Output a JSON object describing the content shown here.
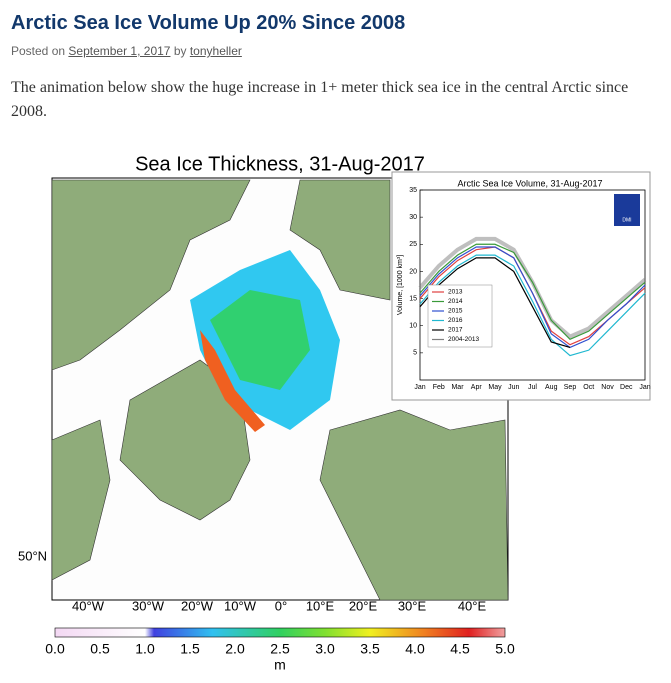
{
  "header": {
    "title": "Arctic Sea Ice Volume Up 20% Since 2008",
    "posted": "Posted on",
    "date": "September 1, 2017",
    "by": "by",
    "author": "tonyheller"
  },
  "body": {
    "paragraph": "The animation below show the huge increase in 1+ meter thick sea ice in the central Arctic since 2008."
  },
  "figure": {
    "title": "Sea Ice Thickness, 31-Aug-2017",
    "lon_labels": [
      "40°W",
      "30°W",
      "20°W",
      "10°W",
      "0°",
      "10°E",
      "20°E",
      "30°E",
      "40°E"
    ],
    "lat_label": "50°N",
    "colorbar": {
      "ticks": [
        "0.0",
        "0.5",
        "1.0",
        "1.5",
        "2.0",
        "2.5",
        "3.0",
        "3.5",
        "4.0",
        "4.5",
        "5.0"
      ],
      "unit": "m"
    },
    "inset": {
      "title": "Arctic Sea Ice Volume, 31-Aug-2017",
      "ylabel": "Volume, [1000 km³]",
      "badge": "DMI",
      "categories": [
        "Jan",
        "Feb",
        "Mar",
        "Apr",
        "May",
        "Jun",
        "Jul",
        "Aug",
        "Sep",
        "Oct",
        "Nov",
        "Dec",
        "Jan"
      ],
      "ylim": [
        0,
        35
      ],
      "yticks": [
        5,
        10,
        15,
        20,
        25,
        30,
        35
      ],
      "series": [
        {
          "name": "2004-2013",
          "color": "#808080",
          "values": [
            17,
            21,
            24,
            26,
            26,
            24,
            18,
            11,
            8,
            9.5,
            12.5,
            15.5,
            18.5
          ]
        },
        {
          "name": "2013",
          "color": "#e04040",
          "values": [
            15,
            19,
            22,
            24,
            24.5,
            22.5,
            16,
            9,
            6.5,
            8,
            11,
            14,
            17
          ]
        },
        {
          "name": "2014",
          "color": "#3a9a3a",
          "values": [
            16,
            20,
            23,
            25,
            25,
            23.5,
            18,
            11,
            7.5,
            9,
            12,
            15,
            18
          ]
        },
        {
          "name": "2015",
          "color": "#3050d0",
          "values": [
            15.5,
            19.5,
            22.5,
            24.5,
            24.5,
            22.5,
            16,
            8.5,
            6,
            7.5,
            11,
            14,
            17.5
          ]
        },
        {
          "name": "2016",
          "color": "#20b8d0",
          "values": [
            14,
            18,
            21,
            23,
            23,
            21,
            14.5,
            7.5,
            4.5,
            5.5,
            9,
            12.5,
            16
          ]
        },
        {
          "name": "2017",
          "color": "#000000",
          "values": [
            13.5,
            17.5,
            20.5,
            22.5,
            22.5,
            20,
            13.5,
            7,
            6,
            null,
            null,
            null,
            null
          ]
        }
      ]
    }
  }
}
